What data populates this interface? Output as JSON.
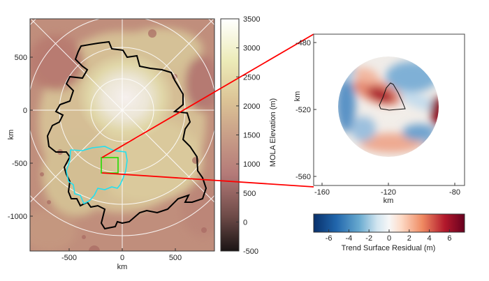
{
  "left_map": {
    "xlabel": "km",
    "ylabel": "km",
    "xticks": [
      "-500",
      "0",
      "500"
    ],
    "xtick_values": [
      -500,
      0,
      500
    ],
    "yticks": [
      "500",
      "0",
      "-500",
      "-1000"
    ],
    "ytick_values": [
      500,
      0,
      -500,
      -1000
    ],
    "outline_colors": {
      "unit_boundary": "#000000",
      "region_boundary": "#22e0f0",
      "inset_box": "#22dd00",
      "callout_lines": "#ff0000"
    }
  },
  "elevation_colorbar": {
    "label": "MOLA Elevation (m)",
    "ticks": [
      "3500",
      "3000",
      "2500",
      "2000",
      "1500",
      "1000",
      "500",
      "0",
      "-500"
    ],
    "range": [
      -500,
      3500
    ],
    "colors": [
      "#1a1414",
      "#6e4b48",
      "#b47a78",
      "#c99f88",
      "#dcc496",
      "#ecebb8",
      "#ffffff"
    ]
  },
  "inset": {
    "xlabel": "km",
    "ylabel": "km",
    "xticks": [
      "-160",
      "-120",
      "-80"
    ],
    "xtick_values": [
      -160,
      -120,
      -80
    ],
    "yticks": [
      "-480",
      "-520",
      "-560"
    ],
    "ytick_values": [
      -480,
      -520,
      -560
    ]
  },
  "residual_colorbar": {
    "label": "Trend Surface Residual (m)",
    "ticks": [
      "-6",
      "-4",
      "-2",
      "0",
      "2",
      "4",
      "6"
    ],
    "range": [
      -7.5,
      7.5
    ],
    "colors": [
      "#08306b",
      "#2166ac",
      "#67a9cf",
      "#d1e5f0",
      "#f7f7f7",
      "#fddbc7",
      "#ef8a62",
      "#b2182b",
      "#67001f"
    ]
  }
}
